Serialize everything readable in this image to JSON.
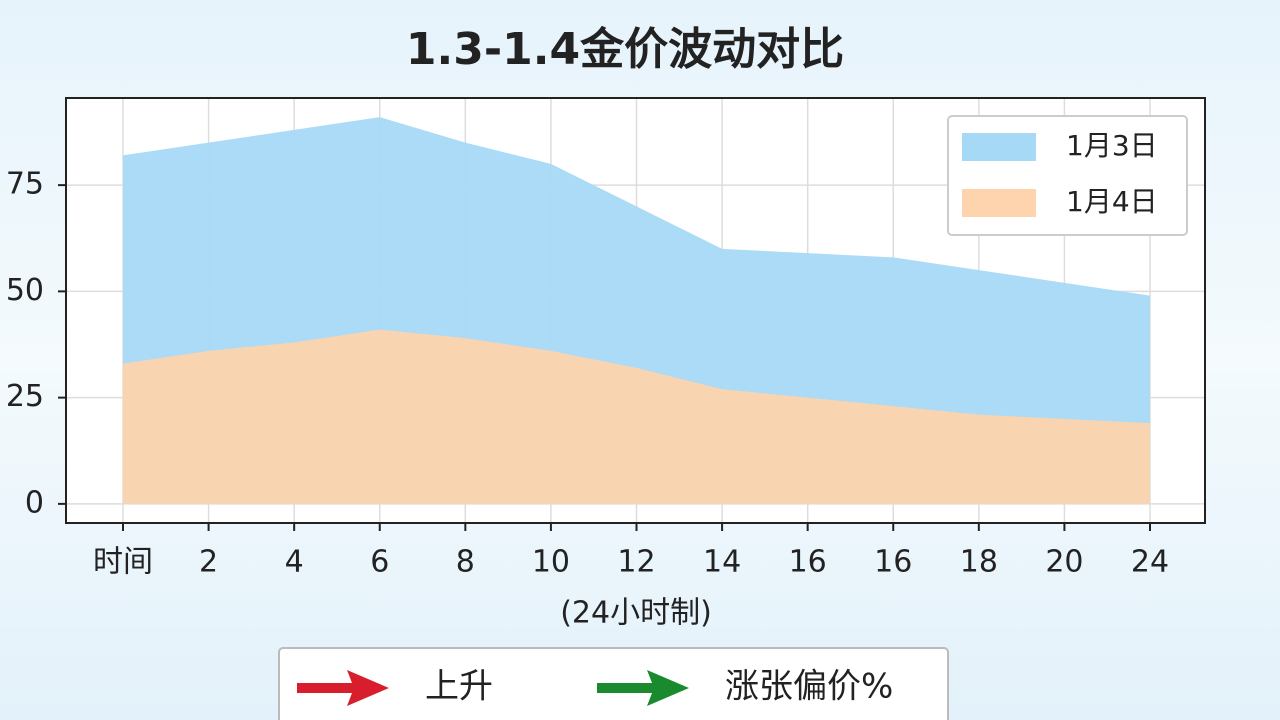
{
  "chart_data": {
    "type": "area",
    "title": "1.3-1.4金价波动对比",
    "x_label": "(24小时制)",
    "categories": [
      "时间",
      "2",
      "4",
      "6",
      "8",
      "10",
      "12",
      "14",
      "16",
      "16",
      "18",
      "20",
      "24"
    ],
    "series": [
      {
        "name": "1月3日",
        "color": "#a6d9f5",
        "values": [
          82,
          85,
          88,
          91,
          85,
          80,
          70,
          60,
          59,
          58,
          55,
          52,
          49
        ]
      },
      {
        "name": "1月4日",
        "color": "#fdd4ad",
        "values": [
          33,
          36,
          38,
          41,
          39,
          36,
          32,
          27,
          25,
          23,
          21,
          20,
          19
        ]
      }
    ],
    "ylim": [
      -4.5,
      95.5
    ],
    "yticks": [
      0,
      25,
      50,
      75
    ],
    "grid": true,
    "legend": "upper right",
    "annotations": [
      {
        "text": "上升",
        "color": "#d81e2c"
      },
      {
        "text": "涨张偏价%",
        "color": "#1a8a2e"
      }
    ]
  }
}
